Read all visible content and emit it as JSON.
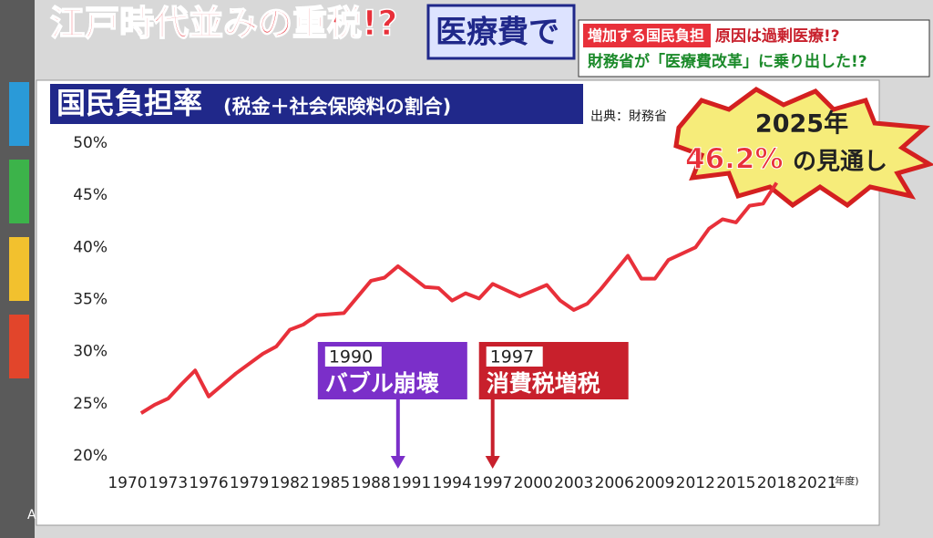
{
  "header": {
    "headline": "江戸時代並みの重税!?",
    "headline2": "医療費で",
    "topic1a": "増加する国民負担",
    "topic1b": "原因は過剰医療!?",
    "topic2": "財務省が「医療費改革」に乗り出した!?"
  },
  "watermark": "ABCテレビ",
  "chart_data": {
    "type": "line",
    "title": "国民負担率",
    "subtitle": "(税金＋社会保険料の割合)",
    "source": "出典：財務省",
    "x_unit": "(年度)",
    "x": [
      1971,
      1972,
      1973,
      1974,
      1975,
      1976,
      1977,
      1978,
      1980,
      1981,
      1982,
      1983,
      1984,
      1986,
      1988,
      1989,
      1990,
      1991,
      1992,
      1993,
      1994,
      1995,
      1996,
      1997,
      1999,
      2001,
      2002,
      2003,
      2004,
      2005,
      2006,
      2007,
      2008,
      2009,
      2010,
      2012,
      2013,
      2014,
      2015,
      2016,
      2017,
      2018
    ],
    "series": [
      {
        "name": "国民負担率",
        "color": "#e8303a",
        "values": [
          24.1,
          24.9,
          25.5,
          26.9,
          28.2,
          25.7,
          26.8,
          27.9,
          29.8,
          30.5,
          32.1,
          32.6,
          33.5,
          33.7,
          36.8,
          37.1,
          38.2,
          37.2,
          36.2,
          36.1,
          34.9,
          35.6,
          35.1,
          36.5,
          35.3,
          36.4,
          34.9,
          34.0,
          34.6,
          36.0,
          37.6,
          39.2,
          37.0,
          37.0,
          38.8,
          40.0,
          41.8,
          42.7,
          42.4,
          44.0,
          44.2,
          46.2
        ]
      }
    ],
    "xlim": [
      1965,
      2024
    ],
    "ylim": [
      20,
      50
    ],
    "xticks": [
      1970,
      1973,
      1976,
      1979,
      1982,
      1985,
      1988,
      1991,
      1994,
      1997,
      2000,
      2003,
      2006,
      2009,
      2012,
      2015,
      2018,
      2021
    ],
    "yticks": [
      {
        "value": 20,
        "label": "20%"
      },
      {
        "value": 25,
        "label": "25%"
      },
      {
        "value": 30,
        "label": "30%"
      },
      {
        "value": 35,
        "label": "35%"
      },
      {
        "value": 40,
        "label": "40%"
      },
      {
        "value": 45,
        "label": "45%"
      },
      {
        "value": 50,
        "label": "50%"
      }
    ],
    "grid": false,
    "annotations": [
      {
        "x": 1990,
        "year": "1990",
        "text": "バブル崩壊",
        "color": "#7b2fc9"
      },
      {
        "x": 1997,
        "year": "1997",
        "text": "消費税増税",
        "color": "#c8202c"
      }
    ],
    "callout": {
      "year": "2025年",
      "value_label": "46.2%",
      "text": "の見通し"
    }
  }
}
